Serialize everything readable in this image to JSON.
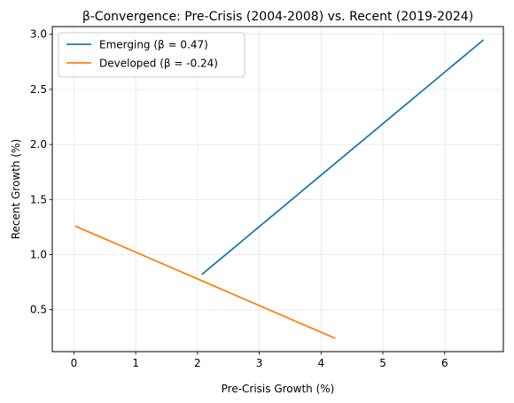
{
  "chart_data": {
    "type": "line",
    "title": "β-Convergence: Pre-Crisis (2004-2008) vs. Recent (2019-2024)",
    "xlabel": "Pre-Crisis Growth (%)",
    "ylabel": "Recent Growth (%)",
    "xlim": [
      -0.35,
      6.95
    ],
    "ylim": [
      0.12,
      3.07
    ],
    "xticks": [
      0,
      1,
      2,
      3,
      4,
      5,
      6
    ],
    "yticks": [
      0.5,
      1.0,
      1.5,
      2.0,
      2.5,
      3.0
    ],
    "xtick_labels": [
      "0",
      "1",
      "2",
      "3",
      "4",
      "5",
      "6"
    ],
    "ytick_labels": [
      "0.5",
      "1.0",
      "1.5",
      "2.0",
      "2.5",
      "3.0"
    ],
    "grid": true,
    "legend_position": "top-left",
    "series": [
      {
        "name": "Emerging (β = 0.47)",
        "color": "#1f77b4",
        "x": [
          2.07,
          6.63
        ],
        "y": [
          0.82,
          2.95
        ]
      },
      {
        "name": "Developed (β = -0.24)",
        "color": "#ff7f0e",
        "x": [
          0.02,
          4.23
        ],
        "y": [
          1.26,
          0.24
        ]
      }
    ]
  }
}
